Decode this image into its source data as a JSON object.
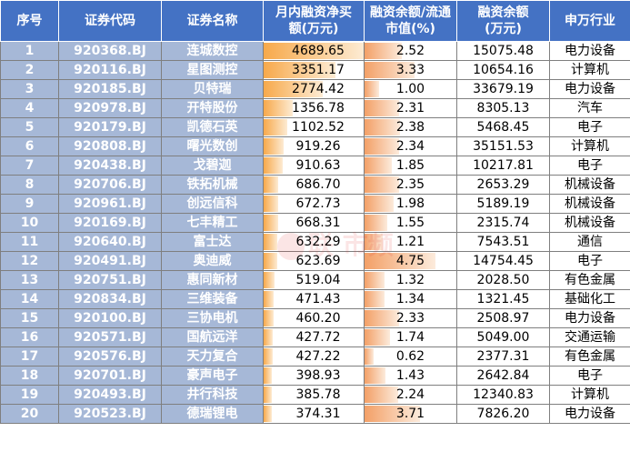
{
  "headers": [
    "序号",
    "证券代码",
    "证券名称",
    "月内融资净买额(万元)",
    "融资余额/流通市值(%)",
    "融资余额(万元)",
    "申万行业"
  ],
  "header_lines": [
    [
      "序号"
    ],
    [
      "证券代码"
    ],
    [
      "证券名称"
    ],
    [
      "月内融资净买",
      "额(万元)"
    ],
    [
      "融资余额/流通",
      "市值(%)"
    ],
    [
      "融资余额",
      "(万元)"
    ],
    [
      "申万行业"
    ]
  ],
  "rows": [
    {
      "no": "1",
      "code": "920368.BJ",
      "name": "连城数控",
      "net_buy": "4689.65",
      "ratio": "2.52",
      "balance": "15075.48",
      "industry": "电力设备"
    },
    {
      "no": "2",
      "code": "920116.BJ",
      "name": "星图测控",
      "net_buy": "3351.17",
      "ratio": "3.33",
      "balance": "10654.16",
      "industry": "计算机"
    },
    {
      "no": "3",
      "code": "920185.BJ",
      "name": "贝特瑞",
      "net_buy": "2774.42",
      "ratio": "1.00",
      "balance": "33679.19",
      "industry": "电力设备"
    },
    {
      "no": "4",
      "code": "920978.BJ",
      "name": "开特股份",
      "net_buy": "1356.78",
      "ratio": "2.31",
      "balance": "8305.13",
      "industry": "汽车"
    },
    {
      "no": "5",
      "code": "920179.BJ",
      "name": "凯德石英",
      "net_buy": "1102.52",
      "ratio": "2.38",
      "balance": "5468.45",
      "industry": "电子"
    },
    {
      "no": "6",
      "code": "920808.BJ",
      "name": "曙光数创",
      "net_buy": "919.26",
      "ratio": "2.34",
      "balance": "35151.53",
      "industry": "计算机"
    },
    {
      "no": "7",
      "code": "920438.BJ",
      "name": "戈碧迦",
      "net_buy": "910.63",
      "ratio": "1.85",
      "balance": "10217.81",
      "industry": "电子"
    },
    {
      "no": "8",
      "code": "920706.BJ",
      "name": "铁拓机械",
      "net_buy": "686.70",
      "ratio": "2.35",
      "balance": "2653.29",
      "industry": "机械设备"
    },
    {
      "no": "9",
      "code": "920961.BJ",
      "name": "创远信科",
      "net_buy": "672.73",
      "ratio": "1.98",
      "balance": "5189.19",
      "industry": "机械设备"
    },
    {
      "no": "10",
      "code": "920169.BJ",
      "name": "七丰精工",
      "net_buy": "668.31",
      "ratio": "1.55",
      "balance": "2315.74",
      "industry": "机械设备"
    },
    {
      "no": "11",
      "code": "920640.BJ",
      "name": "富士达",
      "net_buy": "632.29",
      "ratio": "1.21",
      "balance": "7543.51",
      "industry": "通信"
    },
    {
      "no": "12",
      "code": "920491.BJ",
      "name": "奥迪威",
      "net_buy": "623.69",
      "ratio": "4.75",
      "balance": "14754.45",
      "industry": "电子"
    },
    {
      "no": "13",
      "code": "920751.BJ",
      "name": "惠同新材",
      "net_buy": "519.04",
      "ratio": "1.32",
      "balance": "2028.50",
      "industry": "有色金属"
    },
    {
      "no": "14",
      "code": "920834.BJ",
      "name": "三维装备",
      "net_buy": "471.43",
      "ratio": "1.34",
      "balance": "1321.45",
      "industry": "基础化工"
    },
    {
      "no": "15",
      "code": "920100.BJ",
      "name": "三协电机",
      "net_buy": "460.20",
      "ratio": "2.33",
      "balance": "2508.97",
      "industry": "电力设备"
    },
    {
      "no": "16",
      "code": "920571.BJ",
      "name": "国航远洋",
      "net_buy": "427.72",
      "ratio": "1.74",
      "balance": "5049.00",
      "industry": "交通运输"
    },
    {
      "no": "17",
      "code": "920576.BJ",
      "name": "天力复合",
      "net_buy": "427.22",
      "ratio": "0.62",
      "balance": "2377.31",
      "industry": "有色金属"
    },
    {
      "no": "18",
      "code": "920701.BJ",
      "name": "豪声电子",
      "net_buy": "398.93",
      "ratio": "1.43",
      "balance": "2642.84",
      "industry": "电子"
    },
    {
      "no": "19",
      "code": "920493.BJ",
      "name": "井行科技",
      "net_buy": "385.78",
      "ratio": "2.24",
      "balance": "12340.83",
      "industry": "计算机"
    },
    {
      "no": "20",
      "code": "920523.BJ",
      "name": "德瑞锂电",
      "net_buy": "374.31",
      "ratio": "3.71",
      "balance": "7826.20",
      "industry": "电力设备"
    }
  ],
  "net_buy_max": 4689.65,
  "ratio_max": 4.75,
  "watermark": "联    市频",
  "colors": {
    "header_bg": "#4472c4",
    "id_cols_bg": "#a6b8d7",
    "net_buy_bar": "#f7a94b",
    "ratio_bar": "#f3a067"
  }
}
